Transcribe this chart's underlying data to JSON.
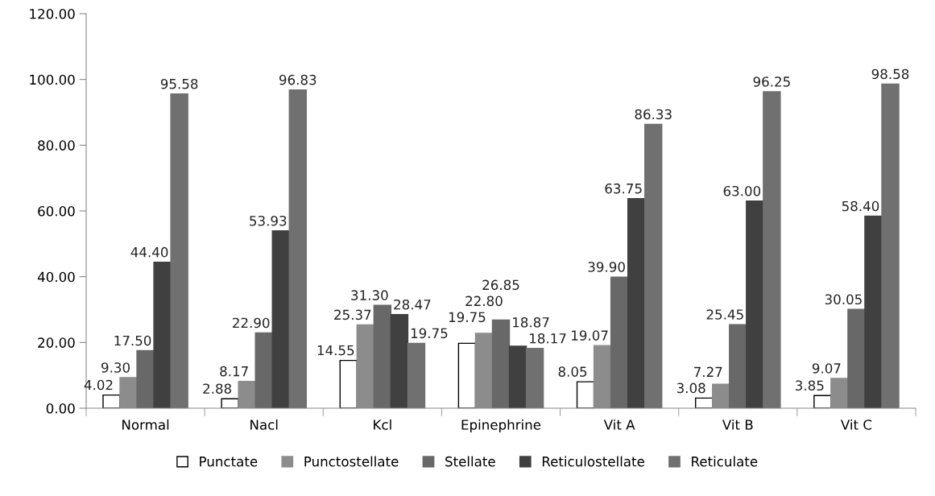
{
  "chart_data": {
    "type": "bar",
    "categories": [
      "Normal",
      "Nacl",
      "Kcl",
      "Epinephrine",
      "Vit A",
      "Vit B",
      "Vit C"
    ],
    "series": [
      {
        "name": "Punctate",
        "color": "#ffffff",
        "values": [
          4.02,
          2.88,
          14.55,
          19.75,
          8.05,
          3.08,
          3.85
        ],
        "value_labels": [
          "4.02",
          "2.88",
          "14.55",
          "19.75",
          "8.05",
          "3.08",
          "3.85"
        ]
      },
      {
        "name": "Punctostellate",
        "color": "#8c8c8c",
        "values": [
          9.3,
          8.17,
          25.37,
          22.8,
          19.07,
          7.27,
          9.07
        ],
        "value_labels": [
          "9.30",
          "8.17",
          "25.37",
          "22.80",
          "19.07",
          "7.27",
          "9.07"
        ]
      },
      {
        "name": "Stellate",
        "color": "#686868",
        "values": [
          17.5,
          22.9,
          31.3,
          26.85,
          39.9,
          25.45,
          30.05
        ],
        "value_labels": [
          "17.50",
          "22.90",
          "31.30",
          "26.85",
          "39.90",
          "25.45",
          "30.05"
        ]
      },
      {
        "name": "Reticulostellate",
        "color": "#404040",
        "values": [
          44.4,
          53.93,
          28.47,
          18.87,
          63.75,
          63.0,
          58.4
        ],
        "value_labels": [
          "44.40",
          "53.93",
          "28.47",
          "18.87",
          "63.75",
          "63.00",
          "58.40"
        ]
      },
      {
        "name": "Reticulate",
        "color": "#707070",
        "values": [
          95.58,
          96.83,
          19.75,
          18.17,
          86.33,
          96.25,
          98.58
        ],
        "value_labels": [
          "95.58",
          "96.83",
          "19.75",
          "18.17",
          "86.33",
          "96.25",
          "98.58"
        ]
      }
    ],
    "ylim": [
      0,
      120
    ],
    "yticks": [
      {
        "value": 0,
        "label": "0.00"
      },
      {
        "value": 20,
        "label": "20.00"
      },
      {
        "value": 40,
        "label": "40.00"
      },
      {
        "value": 60,
        "label": "60.00"
      },
      {
        "value": 80,
        "label": "80.00"
      },
      {
        "value": 100,
        "label": "100.00"
      },
      {
        "value": 120,
        "label": "120.00"
      }
    ],
    "grid": false,
    "legend": "bottom"
  }
}
